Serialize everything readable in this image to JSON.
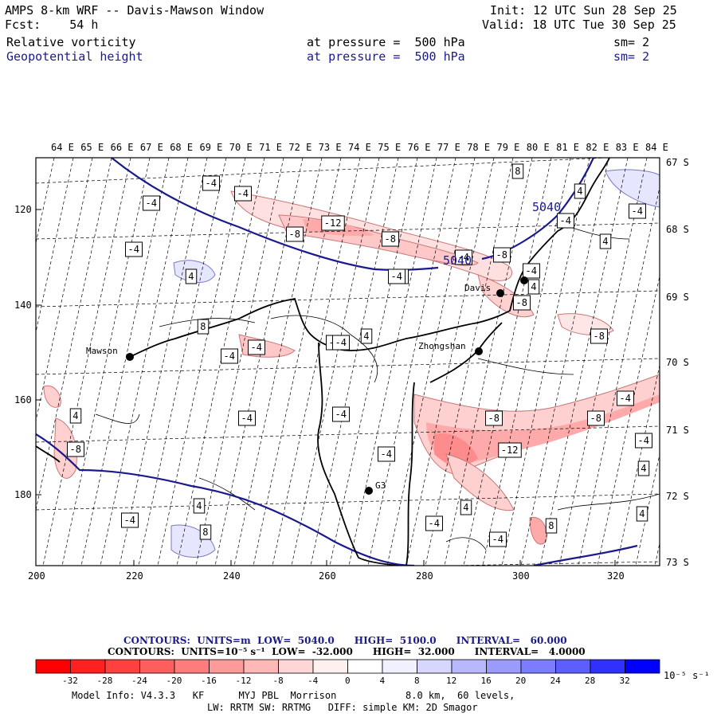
{
  "header": {
    "title": "AMPS 8-km WRF -- Davis-Mawson Window",
    "forecast": "Fcst:    54 h",
    "init": "Init: 12 UTC Sun 28 Sep 25",
    "valid": "Valid: 18 UTC Tue 30 Sep 25"
  },
  "fields": [
    {
      "name": "Relative vorticity",
      "level_text": "at pressure =  500 hPa",
      "smooth": "sm= 2",
      "color": "#000000"
    },
    {
      "name": "Geopotential height",
      "level_text": "at pressure =  500 hPa",
      "smooth": "sm= 2",
      "color": "#1a1a8c"
    }
  ],
  "map": {
    "lon_labels": [
      "64 E",
      "65 E",
      "66 E",
      "67 E",
      "68 E",
      "69 E",
      "70 E",
      "71 E",
      "72 E",
      "73 E",
      "74 E",
      "75 E",
      "76 E",
      "77 E",
      "78 E",
      "79 E",
      "80 E",
      "81 E",
      "82 E",
      "83 E",
      "84 E"
    ],
    "lat_labels": [
      "67 S",
      "68 S",
      "69 S",
      "70 S",
      "71 S",
      "72 S",
      "73 S"
    ],
    "x_ticks": [
      "200",
      "220",
      "240",
      "260",
      "280",
      "300",
      "320"
    ],
    "y_ticks": [
      "120",
      "140",
      "160",
      "180"
    ],
    "stations": [
      "Mawson",
      "Davis",
      "Zhongshan",
      "G3"
    ],
    "height_labels": [
      "5040",
      "5040"
    ],
    "vort_labels": [
      "-4",
      "-4",
      "-4",
      "-4",
      "-12",
      "-8",
      "-8",
      "-4",
      "4",
      "8",
      "-4",
      "-4",
      "-8",
      "4",
      "-4",
      "-4",
      "4",
      "-8",
      "8",
      "4",
      "-4",
      "4",
      "-4",
      "-8",
      "-8",
      "-12",
      "-8",
      "-4",
      "-4",
      "4",
      "4",
      "-8",
      "-4",
      "-4",
      "4",
      "-4",
      "4",
      "8",
      "-4",
      "-4",
      "-4",
      "4",
      "-8",
      "-4",
      "8",
      "-4"
    ]
  },
  "legend": {
    "contour_height": "CONTOURS:  UNITS=m  LOW=  5040.0      HIGH=  5100.0      INTERVAL=   60.000",
    "contour_vort": "CONTOURS:  UNITS=10⁻⁵ s⁻¹  LOW=  -32.000      HIGH=  32.000      INTERVAL=   4.0000",
    "colorbar_ticks": [
      "-32",
      "-28",
      "-24",
      "-20",
      "-16",
      "-12",
      "-8",
      "-4",
      "0",
      "4",
      "8",
      "12",
      "16",
      "20",
      "24",
      "28",
      "32"
    ],
    "colorbar_unit": "10⁻⁵ s⁻¹",
    "colors": [
      "#ff0000",
      "#ff3232",
      "#ff5050",
      "#ff6e6e",
      "#ff8c8c",
      "#ffaaaa",
      "#ffc8c8",
      "#ffe6e6",
      "#ffffff",
      "#ffffff",
      "#e6e6ff",
      "#c8c8ff",
      "#aaaaff",
      "#8c8cff",
      "#6e6eff",
      "#5050ff",
      "#0000ff"
    ]
  },
  "model_info": {
    "line1": "Model Info: V4.3.3   KF      MYJ PBL  Morrison            8.0 km,  60 levels,",
    "line2": "LW: RRTM SW: RRTMG   DIFF: simple KM: 2D Smagor"
  }
}
